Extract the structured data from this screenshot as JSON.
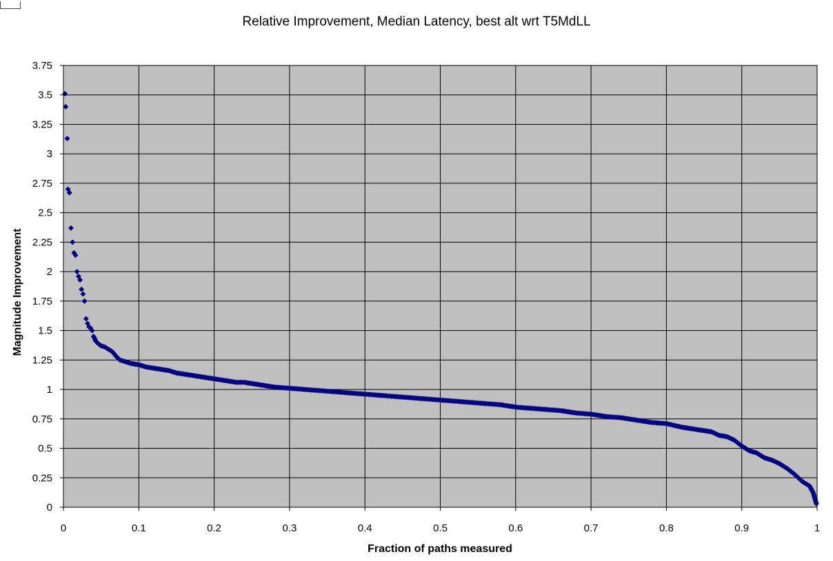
{
  "chart_data": {
    "type": "scatter",
    "title": "Relative Improvement, Median Latency, best alt wrt T5MdLL",
    "xlabel": "Fraction of paths measured",
    "ylabel": "Magnitude Improvement",
    "xlim": [
      0,
      1
    ],
    "ylim": [
      0,
      3.75
    ],
    "xticks": [
      "0",
      "0.1",
      "0.2",
      "0.3",
      "0.4",
      "0.5",
      "0.6",
      "0.7",
      "0.8",
      "0.9",
      "1"
    ],
    "yticks": [
      "0",
      "0.25",
      "0.5",
      "0.75",
      "1",
      "1.25",
      "1.5",
      "1.75",
      "2",
      "2.25",
      "2.5",
      "2.75",
      "3",
      "3.25",
      "3.5",
      "3.75"
    ],
    "grid": true,
    "legend": "none",
    "colors": {
      "marker": "#000080",
      "plot_background": "#c0c0c0",
      "grid": "#000000"
    },
    "series": [
      {
        "x": [
          0.002,
          0.003,
          0.005,
          0.006,
          0.008,
          0.01,
          0.012,
          0.014,
          0.016,
          0.018,
          0.02,
          0.022,
          0.024,
          0.026,
          0.028,
          0.03,
          0.032,
          0.034,
          0.036,
          0.038,
          0.04,
          0.043,
          0.046,
          0.05,
          0.055,
          0.06,
          0.065,
          0.07,
          0.075,
          0.08,
          0.09,
          0.1,
          0.11,
          0.12,
          0.13,
          0.14,
          0.15,
          0.16,
          0.17,
          0.18,
          0.19,
          0.2,
          0.21,
          0.22,
          0.23,
          0.24,
          0.25,
          0.26,
          0.27,
          0.28,
          0.3,
          0.32,
          0.34,
          0.36,
          0.38,
          0.4,
          0.42,
          0.44,
          0.46,
          0.48,
          0.5,
          0.52,
          0.54,
          0.56,
          0.58,
          0.6,
          0.62,
          0.64,
          0.66,
          0.68,
          0.7,
          0.72,
          0.74,
          0.76,
          0.78,
          0.8,
          0.82,
          0.84,
          0.86,
          0.87,
          0.88,
          0.89,
          0.9,
          0.91,
          0.92,
          0.93,
          0.94,
          0.95,
          0.96,
          0.97,
          0.98,
          0.99,
          0.995,
          0.999
        ],
        "y": [
          3.51,
          3.4,
          3.13,
          2.7,
          2.67,
          2.37,
          2.25,
          2.16,
          2.14,
          2.0,
          1.96,
          1.93,
          1.85,
          1.81,
          1.75,
          1.6,
          1.56,
          1.53,
          1.52,
          1.5,
          1.45,
          1.41,
          1.39,
          1.37,
          1.36,
          1.34,
          1.32,
          1.28,
          1.25,
          1.24,
          1.22,
          1.21,
          1.19,
          1.18,
          1.17,
          1.16,
          1.14,
          1.13,
          1.12,
          1.11,
          1.1,
          1.09,
          1.08,
          1.07,
          1.06,
          1.06,
          1.05,
          1.04,
          1.03,
          1.02,
          1.01,
          1.0,
          0.99,
          0.98,
          0.97,
          0.96,
          0.95,
          0.94,
          0.93,
          0.92,
          0.91,
          0.9,
          0.89,
          0.88,
          0.87,
          0.85,
          0.84,
          0.83,
          0.82,
          0.8,
          0.79,
          0.77,
          0.76,
          0.74,
          0.72,
          0.71,
          0.68,
          0.66,
          0.64,
          0.61,
          0.6,
          0.57,
          0.52,
          0.48,
          0.46,
          0.42,
          0.4,
          0.37,
          0.33,
          0.28,
          0.22,
          0.18,
          0.12,
          0.03
        ]
      }
    ]
  }
}
